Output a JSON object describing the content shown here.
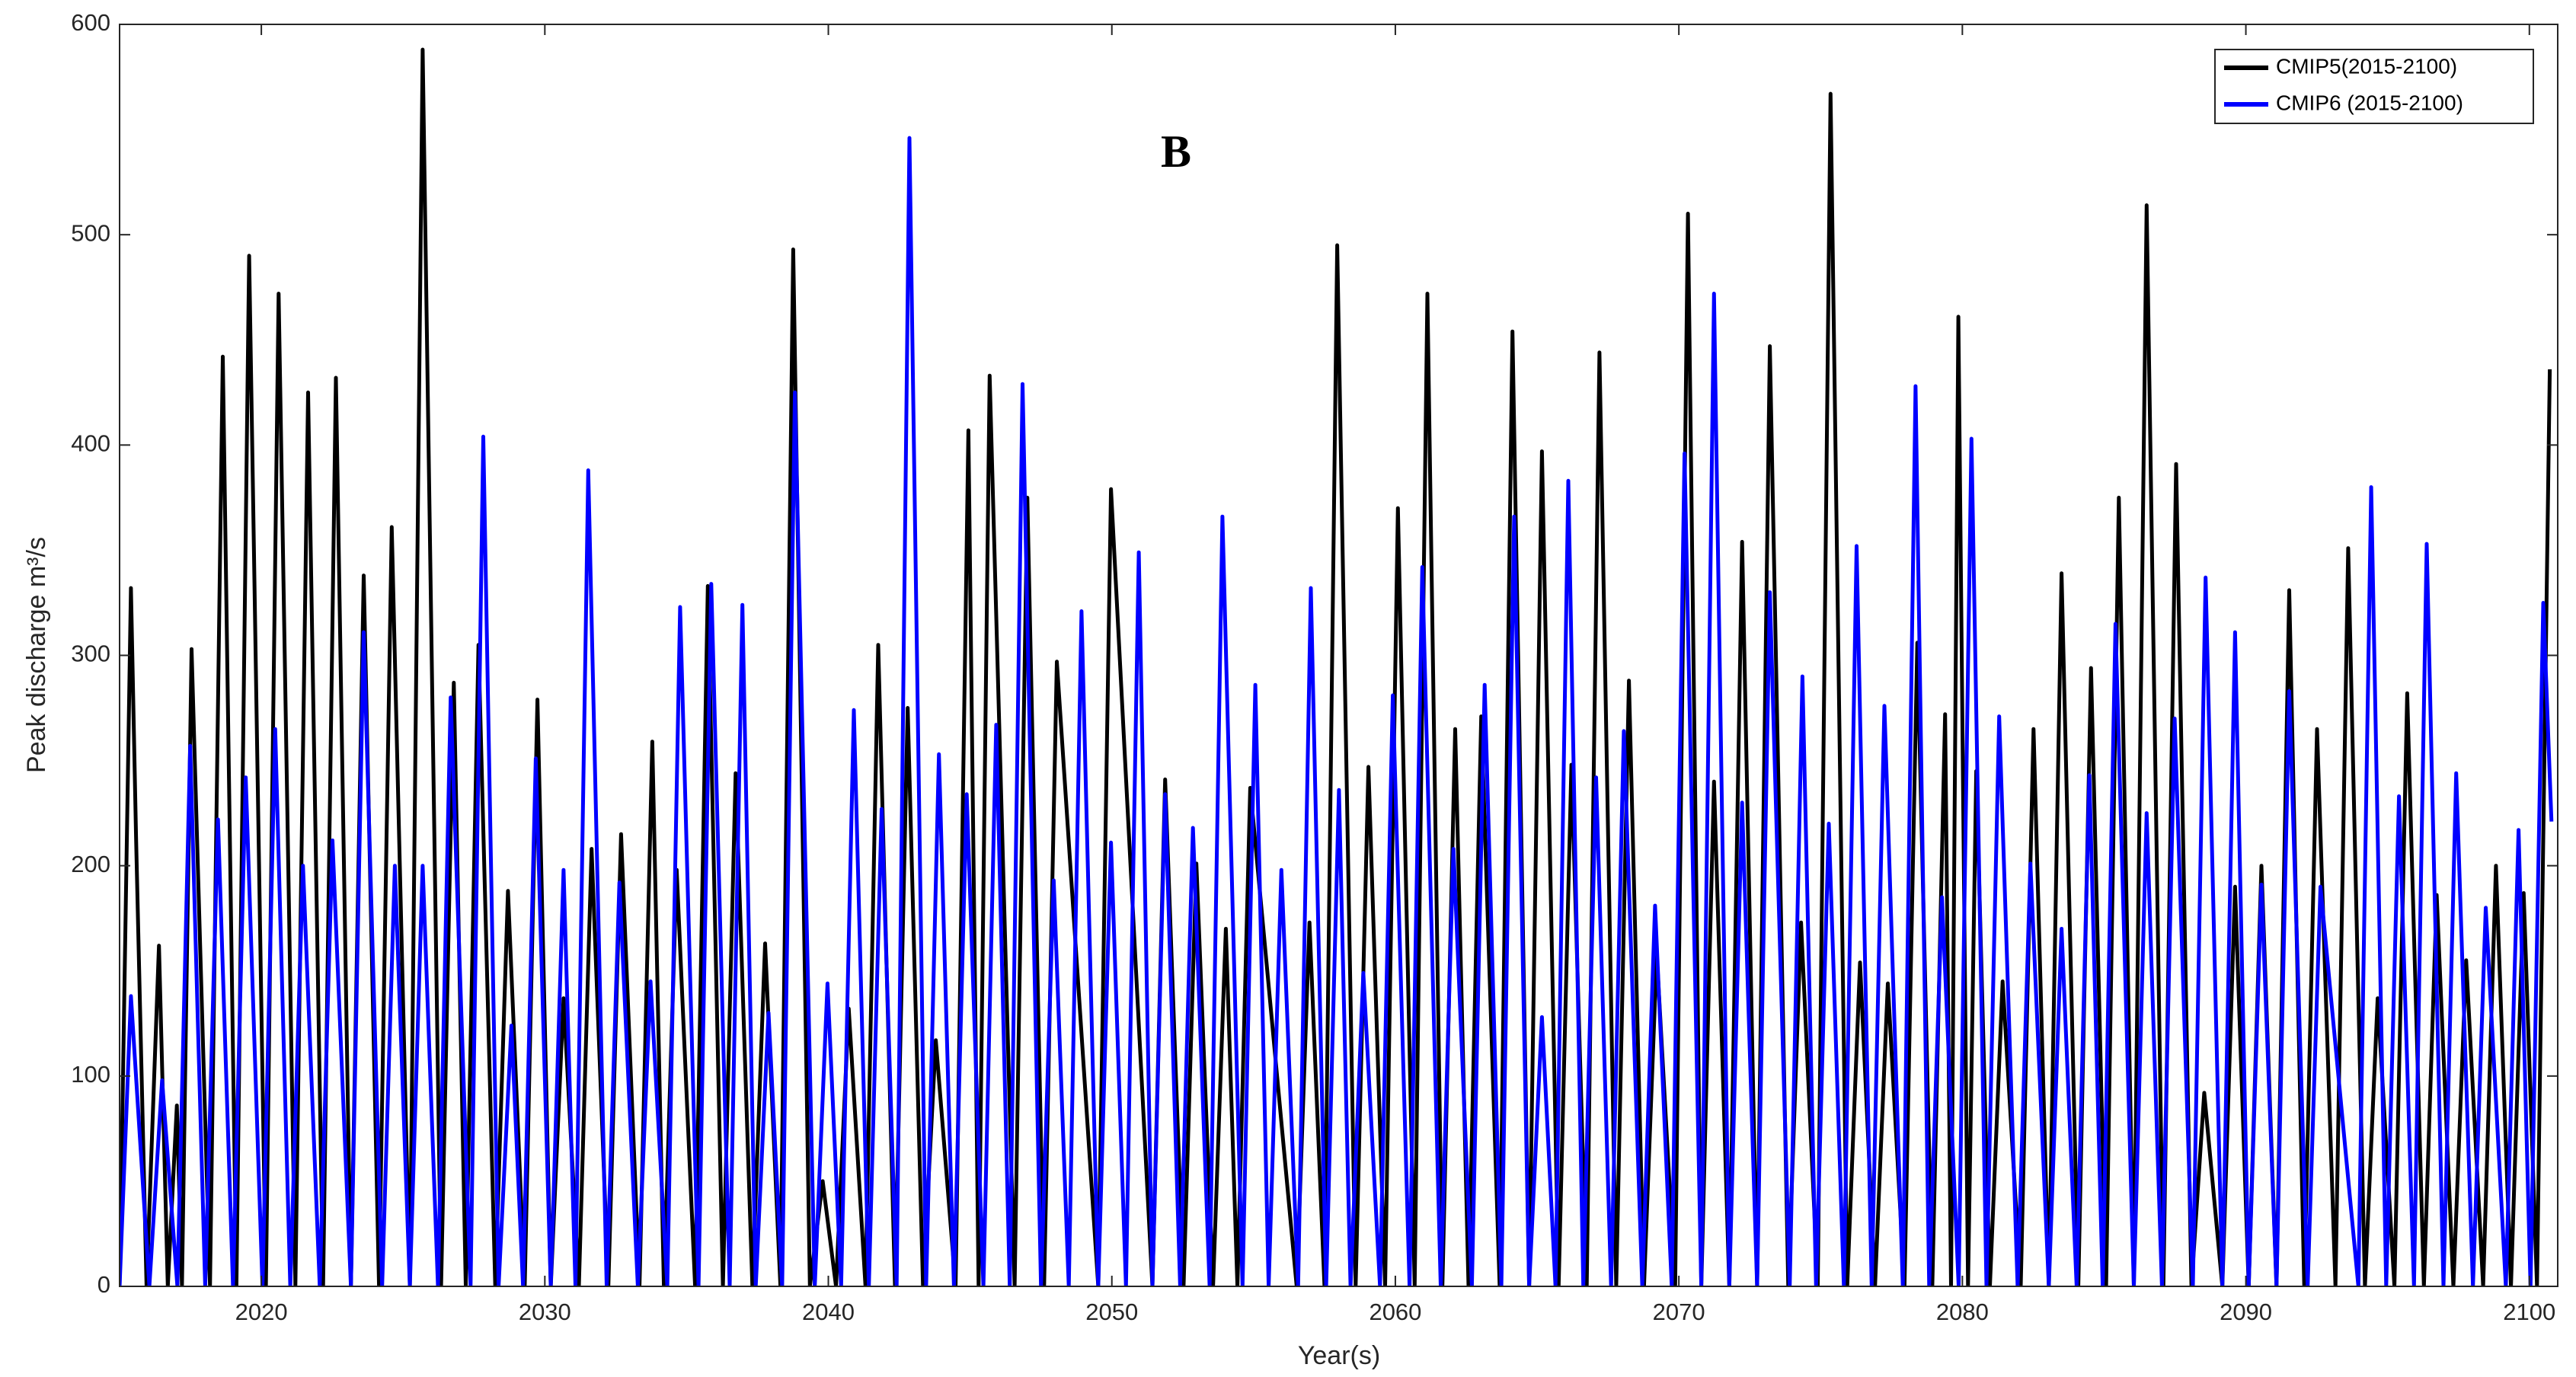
{
  "chart_data": {
    "type": "line",
    "title": "B",
    "xlabel": "Year(s)",
    "ylabel": "Peak discharge m³/s",
    "xlim": [
      2015,
      2101
    ],
    "xticks": [
      2020,
      2030,
      2040,
      2050,
      2060,
      2070,
      2080,
      2090,
      2100
    ],
    "ylim": [
      0,
      600
    ],
    "yticks": [
      0,
      100,
      200,
      300,
      400,
      500,
      600
    ],
    "legend": "upper-right",
    "grid": false,
    "series": [
      {
        "name": "CMIP5(2015-2100)",
        "color": "#000000",
        "x": [
          2015.0,
          2015.4,
          2015.58,
          2015.95,
          2016.39,
          2016.7,
          2017.02,
          2017.2,
          2017.54,
          2018.19,
          2018.64,
          2019.12,
          2019.57,
          2020.16,
          2020.61,
          2021.2,
          2021.65,
          2022.18,
          2022.63,
          2023.16,
          2023.61,
          2024.15,
          2024.6,
          2025.24,
          2025.69,
          2026.34,
          2026.79,
          2027.21,
          2027.66,
          2028.25,
          2028.7,
          2029.29,
          2029.74,
          2030.21,
          2030.66,
          2031.2,
          2031.65,
          2032.24,
          2032.69,
          2033.34,
          2033.79,
          2034.2,
          2034.65,
          2035.3,
          2035.75,
          2036.28,
          2036.73,
          2037.32,
          2037.77,
          2038.31,
          2038.76,
          2039.35,
          2039.8,
          2040.27,
          2040.72,
          2041.31,
          2041.76,
          2042.35,
          2042.8,
          2043.34,
          2043.79,
          2044.49,
          2044.94,
          2045.3,
          2045.69,
          2046.57,
          2047.02,
          2047.61,
          2048.06,
          2049.52,
          2049.97,
          2051.43,
          2051.88,
          2052.53,
          2052.98,
          2053.57,
          2054.02,
          2054.43,
          2054.88,
          2056.52,
          2056.97,
          2057.5,
          2057.95,
          2058.6,
          2059.05,
          2059.64,
          2060.09,
          2060.68,
          2061.13,
          2061.66,
          2062.11,
          2062.58,
          2063.03,
          2063.68,
          2064.13,
          2064.72,
          2065.17,
          2065.76,
          2066.21,
          2066.75,
          2067.2,
          2067.79,
          2068.24,
          2068.77,
          2069.22,
          2069.87,
          2070.32,
          2070.79,
          2071.24,
          2071.78,
          2072.23,
          2072.76,
          2073.21,
          2073.86,
          2074.31,
          2074.9,
          2075.35,
          2075.94,
          2076.39,
          2076.92,
          2077.37,
          2077.96,
          2078.41,
          2078.94,
          2079.39,
          2079.6,
          2079.86,
          2080.2,
          2080.49,
          2080.97,
          2081.42,
          2082.06,
          2082.51,
          2083.05,
          2083.5,
          2084.09,
          2084.54,
          2085.07,
          2085.52,
          2086.05,
          2086.5,
          2087.09,
          2087.54,
          2088.08,
          2088.53,
          2089.17,
          2089.62,
          2090.1,
          2090.55,
          2091.08,
          2091.53,
          2092.06,
          2092.51,
          2093.16,
          2093.61,
          2094.2,
          2094.65,
          2095.24,
          2095.69,
          2096.28,
          2096.73,
          2097.32,
          2097.77,
          2098.37,
          2098.82,
          2099.35,
          2099.8,
          2100.27,
          2100.72
        ],
        "values": [
          0,
          332,
          214,
          0,
          162,
          0,
          86,
          0,
          303,
          0,
          442,
          0,
          490,
          0,
          472,
          0,
          425,
          0,
          432,
          0,
          338,
          0,
          361,
          0,
          588,
          0,
          287,
          0,
          305,
          0,
          188,
          0,
          279,
          0,
          137,
          0,
          208,
          0,
          215,
          0,
          259,
          0,
          198,
          0,
          333,
          0,
          244,
          0,
          163,
          0,
          493,
          0,
          50,
          0,
          132,
          0,
          305,
          0,
          275,
          0,
          117,
          0,
          407,
          0,
          433,
          0,
          375,
          0,
          297,
          0,
          379,
          0,
          241,
          0,
          201,
          0,
          170,
          0,
          237,
          0,
          173,
          0,
          495,
          0,
          247,
          0,
          370,
          0,
          472,
          0,
          265,
          0,
          271,
          0,
          454,
          0,
          397,
          0,
          248,
          0,
          444,
          0,
          288,
          0,
          158,
          0,
          510,
          0,
          240,
          0,
          354,
          0,
          447,
          0,
          173,
          0,
          567,
          0,
          154,
          0,
          144,
          0,
          306,
          0,
          272,
          0,
          461,
          0,
          245,
          0,
          145,
          0,
          265,
          0,
          339,
          0,
          294,
          0,
          375,
          0,
          514,
          0,
          391,
          0,
          92,
          0,
          190,
          0,
          200,
          0,
          331,
          0,
          265,
          0,
          351,
          0,
          137,
          0,
          282,
          0,
          186,
          0,
          155,
          0,
          200,
          0,
          187,
          0,
          436
        ]
      },
      {
        "name": "CMIP6 (2015-2100)",
        "color": "#0000ff",
        "x": [
          2015.0,
          2015.4,
          2016.05,
          2016.5,
          2017.04,
          2017.49,
          2018.02,
          2018.47,
          2019.0,
          2019.45,
          2020.04,
          2020.49,
          2021.02,
          2021.47,
          2022.06,
          2022.51,
          2023.16,
          2023.61,
          2024.26,
          2024.71,
          2025.24,
          2025.69,
          2026.23,
          2026.68,
          2027.38,
          2027.83,
          2028.37,
          2028.82,
          2029.23,
          2029.68,
          2030.21,
          2030.66,
          2031.08,
          2031.53,
          2032.18,
          2032.63,
          2033.28,
          2033.73,
          2034.32,
          2034.77,
          2035.42,
          2035.87,
          2036.52,
          2036.97,
          2037.44,
          2037.89,
          2038.37,
          2038.82,
          2039.52,
          2039.97,
          2040.45,
          2040.9,
          2041.43,
          2041.88,
          2042.41,
          2042.86,
          2043.45,
          2043.9,
          2044.43,
          2044.88,
          2045.47,
          2045.92,
          2046.4,
          2046.85,
          2047.5,
          2047.95,
          2048.48,
          2048.93,
          2049.52,
          2049.97,
          2050.5,
          2050.95,
          2051.43,
          2051.88,
          2052.41,
          2052.86,
          2053.45,
          2053.9,
          2054.61,
          2055.06,
          2055.53,
          2055.98,
          2056.57,
          2057.02,
          2057.56,
          2058.01,
          2058.42,
          2058.87,
          2059.46,
          2059.91,
          2060.5,
          2060.95,
          2061.6,
          2062.05,
          2062.7,
          2063.15,
          2063.74,
          2064.19,
          2064.72,
          2065.17,
          2065.65,
          2066.1,
          2066.63,
          2067.08,
          2067.61,
          2068.06,
          2068.71,
          2069.16,
          2069.75,
          2070.2,
          2070.79,
          2071.24,
          2071.78,
          2072.23,
          2072.76,
          2073.21,
          2073.91,
          2074.36,
          2074.84,
          2075.29,
          2075.82,
          2076.27,
          2076.8,
          2077.25,
          2077.9,
          2078.35,
          2078.83,
          2079.28,
          2079.87,
          2080.32,
          2080.85,
          2081.3,
          2081.95,
          2082.4,
          2083.05,
          2083.5,
          2084.03,
          2084.48,
          2084.95,
          2085.4,
          2086.05,
          2086.5,
          2087.04,
          2087.49,
          2088.13,
          2088.58,
          2089.17,
          2089.62,
          2090.1,
          2090.55,
          2091.08,
          2091.53,
          2092.18,
          2092.63,
          2093.97,
          2094.42,
          2094.95,
          2095.4,
          2095.93,
          2096.38,
          2096.97,
          2097.42,
          2098.01,
          2098.46,
          2099.17,
          2099.62,
          2100.04,
          2100.49,
          2100.78
        ],
        "values": [
          0,
          138,
          0,
          98,
          0,
          257,
          0,
          222,
          0,
          242,
          0,
          265,
          0,
          200,
          0,
          212,
          0,
          311,
          0,
          200,
          0,
          200,
          0,
          280,
          0,
          404,
          0,
          124,
          0,
          251,
          0,
          198,
          0,
          388,
          0,
          192,
          0,
          145,
          0,
          323,
          0,
          334,
          0,
          324,
          0,
          130,
          0,
          425,
          0,
          144,
          0,
          274,
          0,
          227,
          0,
          546,
          0,
          253,
          0,
          234,
          0,
          267,
          0,
          429,
          0,
          193,
          0,
          321,
          0,
          211,
          0,
          349,
          0,
          234,
          0,
          218,
          0,
          366,
          0,
          286,
          0,
          198,
          0,
          332,
          0,
          236,
          0,
          149,
          0,
          281,
          0,
          342,
          0,
          208,
          0,
          286,
          0,
          366,
          0,
          128,
          0,
          383,
          0,
          242,
          0,
          264,
          0,
          181,
          0,
          396,
          0,
          472,
          0,
          230,
          0,
          330,
          0,
          290,
          0,
          220,
          0,
          352,
          0,
          276,
          0,
          428,
          0,
          185,
          0,
          403,
          0,
          271,
          0,
          201,
          0,
          170,
          0,
          243,
          0,
          315,
          0,
          225,
          0,
          270,
          0,
          337,
          0,
          311,
          0,
          191,
          0,
          283,
          0,
          190,
          0,
          380,
          0,
          233,
          0,
          353,
          0,
          244,
          0,
          180,
          0,
          217,
          0,
          325,
          221
        ]
      }
    ]
  }
}
